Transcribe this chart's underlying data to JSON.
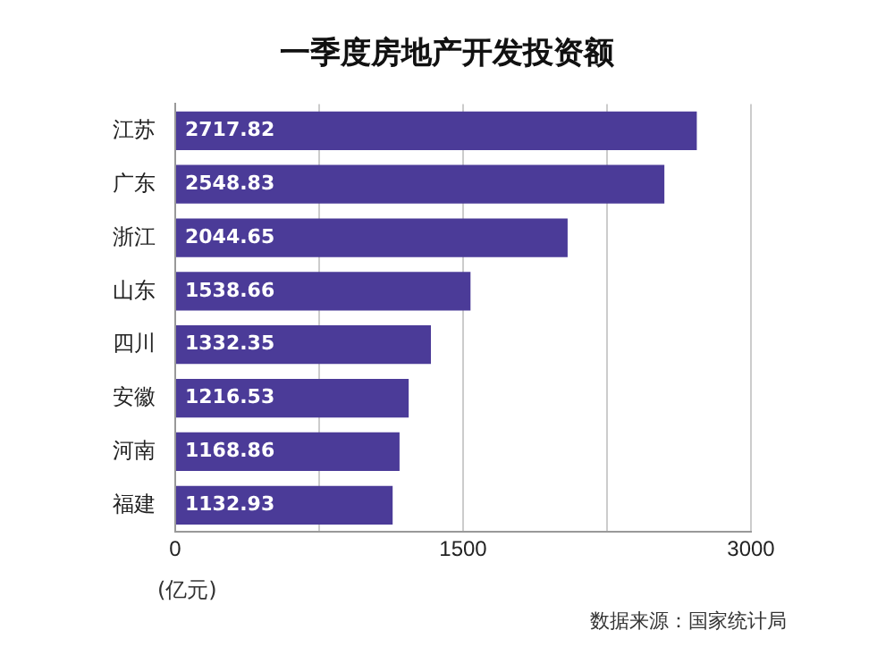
{
  "chart_data": {
    "type": "bar",
    "orientation": "horizontal",
    "title": "一季度房地产开发投资额",
    "xlabel": "(亿元)",
    "categories": [
      "江苏",
      "广东",
      "浙江",
      "山东",
      "四川",
      "安徽",
      "河南",
      "福建"
    ],
    "values": [
      2717.82,
      2548.83,
      2044.65,
      1538.66,
      1332.35,
      1216.53,
      1168.86,
      1132.93
    ],
    "color": "#4b3b98",
    "data_labels": true,
    "xlim": [
      0,
      3000
    ],
    "xticks": [
      0,
      {
        "value": 750,
        "label": null
      },
      1500,
      {
        "value": 2250,
        "label": null
      },
      3000
    ],
    "grid": "x",
    "legend": false,
    "annotations": [
      "数据来源：国家统计局"
    ]
  }
}
